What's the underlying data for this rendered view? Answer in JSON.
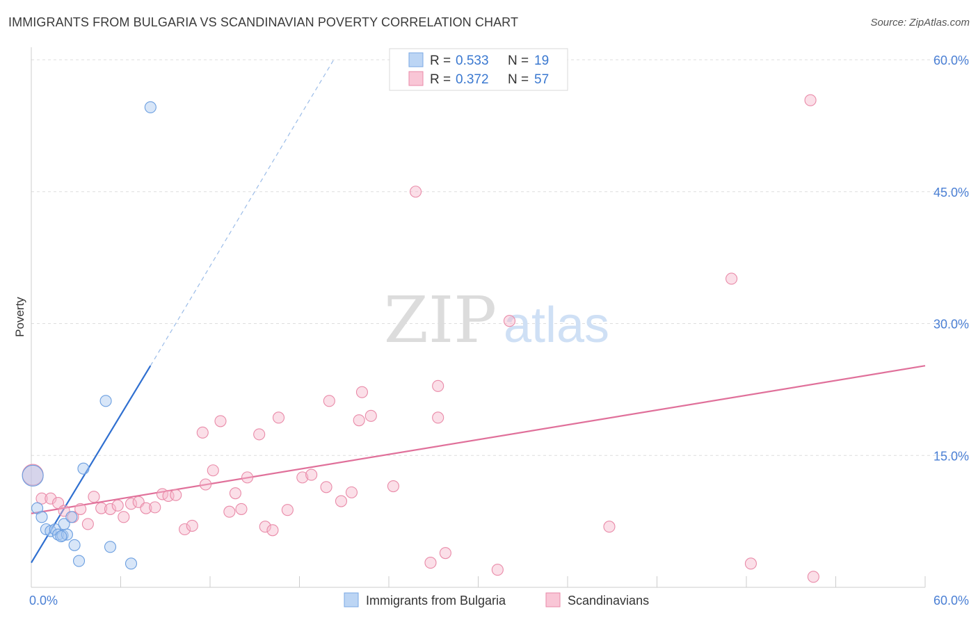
{
  "header": {
    "title": "IMMIGRANTS FROM BULGARIA VS SCANDINAVIAN POVERTY CORRELATION CHART",
    "source": "Source: ZipAtlas.com"
  },
  "watermark": {
    "zip": "ZIP",
    "atlas": "atlas"
  },
  "colors": {
    "bulgaria_fill": "#a9c8f0",
    "bulgaria_stroke": "#6a9ee0",
    "bulgaria_line": "#2f6fd0",
    "scand_fill": "#f7b8cb",
    "scand_stroke": "#e98aa8",
    "scand_line": "#e0709a",
    "grid": "#dddddd",
    "axis_label": "#4a7fd4"
  },
  "legend": {
    "rows": [
      {
        "r_label": "R = ",
        "r_value": "0.533",
        "n_label": "N = ",
        "n_value": "19"
      },
      {
        "r_label": "R = ",
        "r_value": "0.372",
        "n_label": "N = ",
        "n_value": "57"
      }
    ]
  },
  "chart_data": {
    "type": "scatter",
    "xlabel": "",
    "ylabel": "Poverty",
    "xlim": [
      0,
      0.6
    ],
    "ylim": [
      0,
      0.6
    ],
    "x_tick_labels": [
      {
        "value": 0,
        "label": "0.0%"
      },
      {
        "value": 0.6,
        "label": "60.0%"
      }
    ],
    "y_tick_labels": [
      {
        "value": 0.15,
        "label": "15.0%"
      },
      {
        "value": 0.3,
        "label": "30.0%"
      },
      {
        "value": 0.45,
        "label": "45.0%"
      },
      {
        "value": 0.6,
        "label": "60.0%"
      }
    ],
    "legend_position": "top-center",
    "series": [
      {
        "name": "Immigrants from Bulgaria",
        "color_key": "bulgaria",
        "points": [
          {
            "x": 0.001,
            "y": 0.127,
            "big": true
          },
          {
            "x": 0.004,
            "y": 0.09
          },
          {
            "x": 0.007,
            "y": 0.08
          },
          {
            "x": 0.01,
            "y": 0.066
          },
          {
            "x": 0.013,
            "y": 0.064
          },
          {
            "x": 0.016,
            "y": 0.066
          },
          {
            "x": 0.018,
            "y": 0.06
          },
          {
            "x": 0.021,
            "y": 0.059
          },
          {
            "x": 0.022,
            "y": 0.072
          },
          {
            "x": 0.024,
            "y": 0.06
          },
          {
            "x": 0.027,
            "y": 0.08
          },
          {
            "x": 0.029,
            "y": 0.048
          },
          {
            "x": 0.032,
            "y": 0.03
          },
          {
            "x": 0.035,
            "y": 0.135
          },
          {
            "x": 0.05,
            "y": 0.212
          },
          {
            "x": 0.053,
            "y": 0.046
          },
          {
            "x": 0.067,
            "y": 0.027
          },
          {
            "x": 0.08,
            "y": 0.546
          },
          {
            "x": 0.02,
            "y": 0.058
          }
        ],
        "trend": {
          "x1": 0.0,
          "y1": 0.028,
          "x2": 0.08,
          "y2": 0.252,
          "dash_to_x": 0.203,
          "dash_to_y": 0.6
        }
      },
      {
        "name": "Scandinavians",
        "color_key": "scand",
        "points": [
          {
            "x": 0.001,
            "y": 0.128,
            "big": true
          },
          {
            "x": 0.007,
            "y": 0.101
          },
          {
            "x": 0.013,
            "y": 0.101
          },
          {
            "x": 0.018,
            "y": 0.096
          },
          {
            "x": 0.022,
            "y": 0.087
          },
          {
            "x": 0.028,
            "y": 0.08
          },
          {
            "x": 0.033,
            "y": 0.089
          },
          {
            "x": 0.038,
            "y": 0.072
          },
          {
            "x": 0.042,
            "y": 0.103
          },
          {
            "x": 0.047,
            "y": 0.09
          },
          {
            "x": 0.053,
            "y": 0.089
          },
          {
            "x": 0.058,
            "y": 0.093
          },
          {
            "x": 0.062,
            "y": 0.08
          },
          {
            "x": 0.067,
            "y": 0.095
          },
          {
            "x": 0.072,
            "y": 0.097
          },
          {
            "x": 0.077,
            "y": 0.09
          },
          {
            "x": 0.083,
            "y": 0.091
          },
          {
            "x": 0.088,
            "y": 0.106
          },
          {
            "x": 0.092,
            "y": 0.104
          },
          {
            "x": 0.097,
            "y": 0.105
          },
          {
            "x": 0.103,
            "y": 0.066
          },
          {
            "x": 0.108,
            "y": 0.07
          },
          {
            "x": 0.115,
            "y": 0.176
          },
          {
            "x": 0.117,
            "y": 0.117
          },
          {
            "x": 0.122,
            "y": 0.133
          },
          {
            "x": 0.127,
            "y": 0.189
          },
          {
            "x": 0.133,
            "y": 0.086
          },
          {
            "x": 0.137,
            "y": 0.107
          },
          {
            "x": 0.141,
            "y": 0.089
          },
          {
            "x": 0.145,
            "y": 0.125
          },
          {
            "x": 0.153,
            "y": 0.174
          },
          {
            "x": 0.157,
            "y": 0.069
          },
          {
            "x": 0.162,
            "y": 0.065
          },
          {
            "x": 0.166,
            "y": 0.193
          },
          {
            "x": 0.172,
            "y": 0.088
          },
          {
            "x": 0.182,
            "y": 0.125
          },
          {
            "x": 0.188,
            "y": 0.128
          },
          {
            "x": 0.198,
            "y": 0.114
          },
          {
            "x": 0.2,
            "y": 0.212
          },
          {
            "x": 0.208,
            "y": 0.098
          },
          {
            "x": 0.215,
            "y": 0.108
          },
          {
            "x": 0.22,
            "y": 0.19
          },
          {
            "x": 0.222,
            "y": 0.222
          },
          {
            "x": 0.228,
            "y": 0.195
          },
          {
            "x": 0.243,
            "y": 0.115
          },
          {
            "x": 0.258,
            "y": 0.45
          },
          {
            "x": 0.268,
            "y": 0.028
          },
          {
            "x": 0.278,
            "y": 0.039
          },
          {
            "x": 0.273,
            "y": 0.193
          },
          {
            "x": 0.273,
            "y": 0.229
          },
          {
            "x": 0.313,
            "y": 0.02
          },
          {
            "x": 0.321,
            "y": 0.303
          },
          {
            "x": 0.388,
            "y": 0.069
          },
          {
            "x": 0.47,
            "y": 0.351
          },
          {
            "x": 0.483,
            "y": 0.027
          },
          {
            "x": 0.523,
            "y": 0.554
          },
          {
            "x": 0.525,
            "y": 0.012
          }
        ],
        "trend": {
          "x1": 0.0,
          "y1": 0.084,
          "x2": 0.6,
          "y2": 0.252
        }
      }
    ]
  }
}
